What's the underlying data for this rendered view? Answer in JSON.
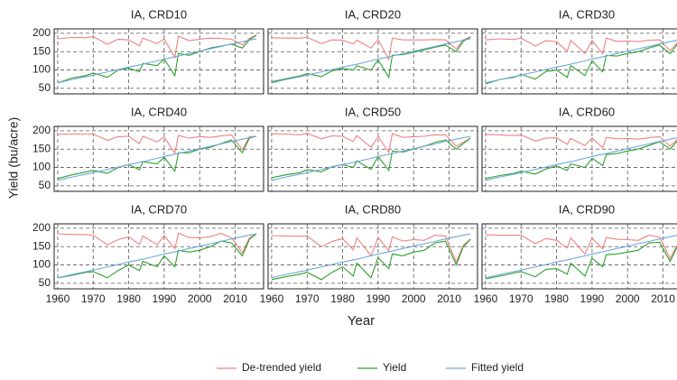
{
  "chart_data": {
    "type": "line",
    "xlabel": "Year",
    "ylabel": "Yield (bu/acre)",
    "x": [
      1960,
      1964,
      1968,
      1970,
      1974,
      1977,
      1980,
      1983,
      1984,
      1988,
      1990,
      1993,
      1994,
      1997,
      2000,
      2003,
      2006,
      2009,
      2012,
      2014,
      2016
    ],
    "xlim": [
      1959,
      2018
    ],
    "xticks": [
      1960,
      1970,
      1980,
      1990,
      2000,
      2010
    ],
    "ylim": [
      35,
      212
    ],
    "yticks": [
      50,
      100,
      150,
      200
    ],
    "grid": true,
    "legend": "bottom",
    "series": [
      {
        "name": "De-trended yield",
        "color": "#f08080"
      },
      {
        "name": "Yield",
        "color": "#2ca02c"
      },
      {
        "name": "Fitted yield",
        "color": "#6fa8dc"
      }
    ],
    "panels": [
      {
        "title": "IA, CRD10",
        "series": [
          {
            "values": [
              185,
              189,
              188,
              191,
              170,
              184,
              182,
              166,
              187,
              172,
              185,
              134,
              192,
              180,
              184,
              187,
              186,
              184,
              168,
              186,
              195
            ]
          },
          {
            "values": [
              65,
              78,
              85,
              92,
              80,
              100,
              105,
              95,
              118,
              112,
              130,
              85,
              145,
              140,
              150,
              160,
              165,
              170,
              160,
              182,
              195
            ]
          },
          {
            "values": [
              65,
              74,
              82,
              86,
              95,
              101,
              108,
              114,
              116,
              125,
              130,
              136,
              138,
              145,
              151,
              158,
              164,
              171,
              177,
              181,
              185
            ]
          }
        ]
      },
      {
        "title": "IA, CRD20",
        "series": [
          {
            "values": [
              188,
              187,
              187,
              189,
              172,
              182,
              181,
              171,
              181,
              160,
              183,
              129,
              187,
              182,
              182,
              182,
              183,
              182,
              158,
              182,
              190
            ]
          },
          {
            "values": [
              68,
              76,
              84,
              90,
              82,
              98,
              104,
              100,
              112,
              100,
              128,
              80,
              140,
              142,
              148,
              155,
              162,
              168,
              150,
              178,
              190
            ]
          },
          {
            "values": [
              65,
              74,
              82,
              86,
              95,
              101,
              108,
              114,
              116,
              125,
              130,
              136,
              138,
              145,
              151,
              158,
              164,
              171,
              177,
              181,
              185
            ]
          }
        ]
      },
      {
        "title": "IA, CRD30",
        "series": [
          {
            "values": [
              182,
              185,
              183,
              187,
              165,
              180,
              177,
              151,
              181,
              145,
              180,
              144,
              187,
              178,
              179,
              177,
              181,
              182,
              153,
              174,
              175
            ]
          },
          {
            "values": [
              62,
              74,
              80,
              88,
              75,
              96,
              100,
              80,
              112,
              85,
              125,
              95,
              140,
              138,
              145,
              150,
              160,
              168,
              145,
              170,
              175
            ]
          },
          {
            "values": [
              65,
              74,
              82,
              86,
              95,
              101,
              108,
              114,
              116,
              125,
              130,
              136,
              138,
              145,
              151,
              158,
              164,
              171,
              177,
              181,
              185
            ]
          }
        ]
      },
      {
        "title": "IA, CRD40",
        "series": [
          {
            "values": [
              190,
              191,
              191,
              191,
              174,
              184,
              185,
              165,
              185,
              170,
              183,
              139,
              187,
              180,
              184,
              182,
              186,
              189,
              148,
              184,
              185
            ]
          },
          {
            "values": [
              70,
              80,
              88,
              92,
              84,
              100,
              108,
              94,
              116,
              110,
              128,
              90,
              140,
              140,
              150,
              155,
              165,
              175,
              140,
              180,
              185
            ]
          },
          {
            "values": [
              65,
              74,
              82,
              86,
              95,
              101,
              108,
              114,
              116,
              125,
              130,
              136,
              138,
              145,
              151,
              158,
              164,
              171,
              177,
              181,
              185
            ]
          }
        ]
      },
      {
        "title": "IA, CRD50",
        "series": [
          {
            "values": [
              192,
              191,
              189,
              193,
              178,
              186,
              185,
              171,
              187,
              155,
              185,
              141,
              192,
              182,
              184,
              185,
              189,
              189,
              158,
              169,
              180
            ]
          },
          {
            "values": [
              72,
              80,
              86,
              94,
              88,
              102,
              108,
              100,
              118,
              95,
              130,
              92,
              145,
              142,
              150,
              158,
              168,
              175,
              150,
              165,
              180
            ]
          },
          {
            "values": [
              65,
              74,
              82,
              86,
              95,
              101,
              108,
              114,
              116,
              125,
              130,
              136,
              138,
              145,
              151,
              158,
              164,
              171,
              177,
              181,
              185
            ]
          }
        ]
      },
      {
        "title": "IA, CRD60",
        "series": [
          {
            "values": [
              190,
              189,
              187,
              189,
              172,
              180,
              181,
              163,
              179,
              160,
              180,
              154,
              182,
              178,
              179,
              177,
              181,
              184,
              158,
              176,
              182
            ]
          },
          {
            "values": [
              70,
              78,
              84,
              90,
              82,
              96,
              104,
              92,
              110,
              100,
              125,
              105,
              135,
              138,
              145,
              150,
              160,
              170,
              150,
              172,
              182
            ]
          },
          {
            "values": [
              65,
              74,
              82,
              86,
              95,
              101,
              108,
              114,
              116,
              125,
              130,
              136,
              138,
              145,
              151,
              158,
              164,
              171,
              177,
              181,
              185
            ]
          }
        ]
      },
      {
        "title": "IA, CRD70",
        "series": [
          {
            "values": [
              185,
              183,
              183,
              181,
              155,
              169,
              177,
              156,
              179,
              155,
              180,
              144,
              187,
              175,
              174,
              177,
              186,
              174,
              133,
              174,
              185
            ]
          },
          {
            "values": [
              65,
              72,
              80,
              82,
              65,
              85,
              100,
              85,
              110,
              95,
              125,
              95,
              140,
              135,
              140,
              150,
              165,
              160,
              125,
              170,
              185
            ]
          },
          {
            "values": [
              65,
              74,
              82,
              86,
              95,
              101,
              108,
              114,
              116,
              125,
              130,
              136,
              138,
              145,
              151,
              158,
              164,
              171,
              177,
              181,
              185
            ]
          }
        ]
      },
      {
        "title": "IA, CRD80",
        "series": [
          {
            "values": [
              180,
              179,
              178,
              179,
              150,
              164,
              172,
              141,
              174,
              125,
              175,
              139,
              177,
              165,
              169,
              167,
              181,
              179,
              108,
              154,
              170
            ]
          },
          {
            "values": [
              60,
              68,
              75,
              80,
              60,
              80,
              95,
              70,
              105,
              65,
              120,
              90,
              130,
              125,
              135,
              140,
              160,
              165,
              100,
              150,
              170
            ]
          },
          {
            "values": [
              65,
              74,
              82,
              86,
              95,
              101,
              108,
              114,
              116,
              125,
              130,
              136,
              138,
              145,
              151,
              158,
              164,
              171,
              177,
              181,
              185
            ]
          }
        ]
      },
      {
        "title": "IA, CRD90",
        "series": [
          {
            "values": [
              182,
              181,
              181,
              181,
              158,
              172,
              167,
              146,
              174,
              130,
              173,
              144,
              175,
              170,
              169,
              167,
              181,
              176,
              118,
              154,
              175
            ]
          },
          {
            "values": [
              62,
              70,
              78,
              82,
              68,
              88,
              90,
              75,
              105,
              70,
              118,
              95,
              128,
              130,
              135,
              140,
              160,
              162,
              110,
              150,
              175
            ]
          },
          {
            "values": [
              65,
              74,
              82,
              86,
              95,
              101,
              108,
              114,
              116,
              125,
              130,
              136,
              138,
              145,
              151,
              158,
              164,
              171,
              177,
              181,
              185
            ]
          }
        ]
      }
    ]
  }
}
